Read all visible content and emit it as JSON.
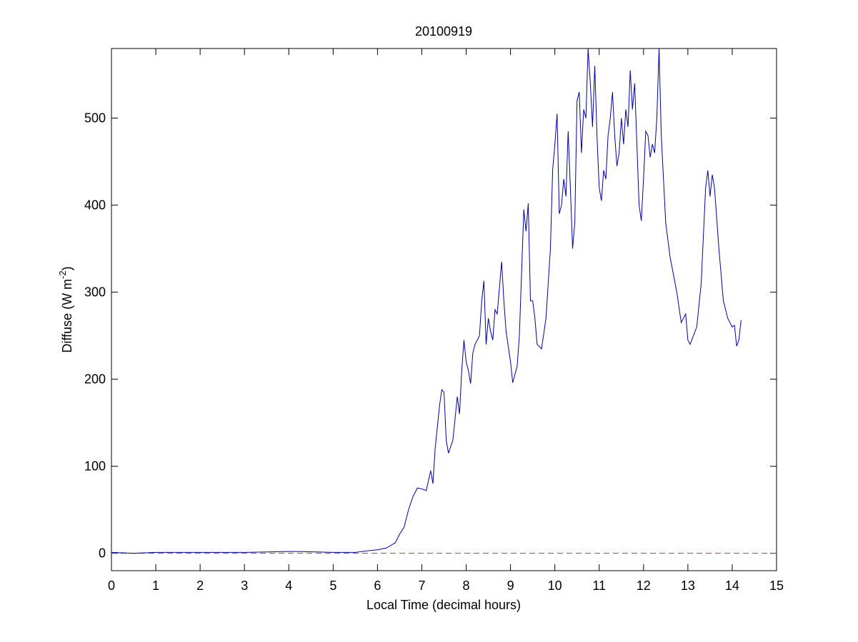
{
  "chart_data": {
    "type": "line",
    "title": "20100919",
    "xlabel": "Local Time (decimal hours)",
    "ylabel": {
      "text": "Diffuse (W m",
      "superscript": "-2",
      "suffix": ")"
    },
    "xlim": [
      0,
      15
    ],
    "ylim": [
      -20,
      580
    ],
    "xticks": [
      0,
      1,
      2,
      3,
      4,
      5,
      6,
      7,
      8,
      9,
      10,
      11,
      12,
      13,
      14,
      15
    ],
    "yticks": [
      0,
      100,
      200,
      300,
      400,
      500
    ],
    "color": "#0000a0",
    "reference_line": {
      "value": 0,
      "color": "#c83232"
    },
    "x": [
      0,
      0.5,
      1,
      2,
      3,
      4,
      4.2,
      5,
      5.5,
      5.8,
      6,
      6.2,
      6.3,
      6.4,
      6.5,
      6.6,
      6.7,
      6.8,
      6.9,
      7,
      7.1,
      7.2,
      7.25,
      7.3,
      7.4,
      7.45,
      7.5,
      7.55,
      7.6,
      7.7,
      7.8,
      7.85,
      7.9,
      7.95,
      8,
      8.05,
      8.1,
      8.15,
      8.2,
      8.3,
      8.35,
      8.4,
      8.45,
      8.5,
      8.55,
      8.6,
      8.65,
      8.7,
      8.8,
      8.85,
      8.9,
      9,
      9.05,
      9.15,
      9.2,
      9.3,
      9.35,
      9.4,
      9.45,
      9.5,
      9.55,
      9.6,
      9.7,
      9.8,
      9.9,
      9.95,
      10,
      10.05,
      10.1,
      10.15,
      10.2,
      10.25,
      10.3,
      10.35,
      10.4,
      10.45,
      10.5,
      10.55,
      10.6,
      10.65,
      10.7,
      10.75,
      10.8,
      10.85,
      10.9,
      10.95,
      11,
      11.05,
      11.1,
      11.15,
      11.2,
      11.25,
      11.3,
      11.35,
      11.4,
      11.45,
      11.5,
      11.55,
      11.6,
      11.65,
      11.7,
      11.75,
      11.8,
      11.85,
      11.9,
      11.95,
      12,
      12.05,
      12.1,
      12.15,
      12.2,
      12.25,
      12.3,
      12.35,
      12.4,
      12.5,
      12.6,
      12.75,
      12.85,
      12.95,
      13,
      13.05,
      13.2,
      13.3,
      13.4,
      13.45,
      13.5,
      13.55,
      13.6,
      13.7,
      13.8,
      13.9,
      14,
      14.05,
      14.1,
      14.15,
      14.2
    ],
    "values": [
      1,
      0,
      1,
      1,
      1,
      2,
      2,
      1,
      1,
      3,
      4,
      6,
      9,
      12,
      22,
      30,
      50,
      65,
      75,
      74,
      72,
      95,
      80,
      120,
      170,
      188,
      185,
      130,
      115,
      130,
      180,
      160,
      210,
      245,
      220,
      210,
      195,
      230,
      240,
      250,
      290,
      313,
      240,
      270,
      255,
      245,
      280,
      275,
      335,
      290,
      255,
      220,
      196,
      215,
      250,
      395,
      370,
      402,
      290,
      290,
      270,
      240,
      235,
      270,
      350,
      440,
      470,
      505,
      390,
      400,
      430,
      410,
      485,
      420,
      350,
      380,
      520,
      530,
      460,
      510,
      500,
      580,
      540,
      490,
      560,
      480,
      420,
      405,
      440,
      430,
      480,
      500,
      530,
      480,
      445,
      460,
      500,
      470,
      510,
      490,
      555,
      510,
      540,
      470,
      400,
      382,
      430,
      485,
      480,
      455,
      470,
      460,
      500,
      580,
      480,
      380,
      340,
      300,
      265,
      275,
      245,
      240,
      260,
      310,
      420,
      440,
      410,
      435,
      420,
      350,
      290,
      270,
      260,
      262,
      238,
      245,
      268
    ]
  }
}
